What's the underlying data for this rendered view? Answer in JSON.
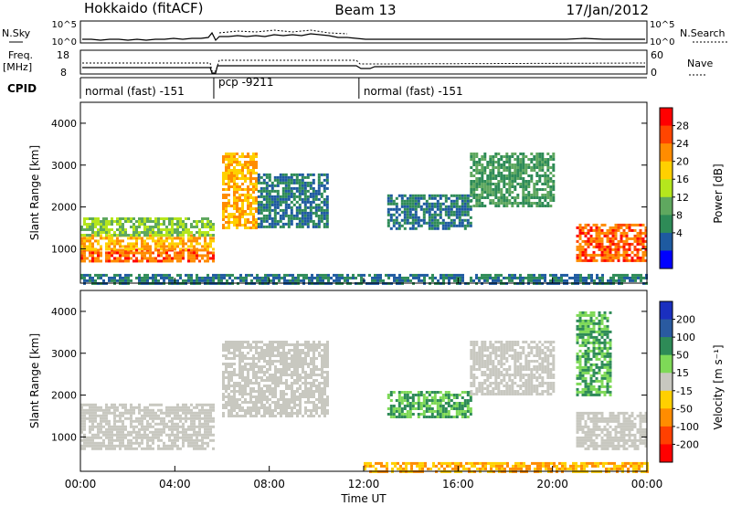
{
  "header": {
    "station": "Hokkaido (fitACF)",
    "beam": "Beam 13",
    "date": "17/Jan/2012"
  },
  "top_panel": {
    "left_label": "N.Sky",
    "left_ticks": [
      "10^5",
      "10^0"
    ],
    "right_ticks": [
      "10^5",
      "10^0"
    ],
    "right_label": "N.Search"
  },
  "freq_panel": {
    "left_label_1": "Freq.",
    "left_label_2": "[MHz]",
    "left_ticks": [
      "18",
      "8"
    ],
    "right_ticks": [
      "60",
      "0"
    ],
    "right_label": "Nave"
  },
  "cpid": {
    "label": "CPID",
    "segments": [
      {
        "start_h": 0,
        "end_h": 5.65,
        "text": "normal (fast) -151"
      },
      {
        "start_h": 5.65,
        "end_h": 11.8,
        "text": "pcp -9211"
      },
      {
        "start_h": 11.8,
        "end_h": 24,
        "text": "normal (fast) -151"
      }
    ]
  },
  "colorbars": {
    "power": {
      "label": "Power [dB]",
      "ticks": [
        "28",
        "24",
        "20",
        "16",
        "12",
        "8",
        "4"
      ],
      "colors": [
        "#ff0000",
        "#ff4500",
        "#ff8c00",
        "#ffd000",
        "#b5e61d",
        "#5fa85f",
        "#2e8b57",
        "#1e5aa0",
        "#0000ff"
      ]
    },
    "velocity": {
      "label": "Velocity [m s⁻¹]",
      "ticks": [
        "200",
        "100",
        "50",
        "15",
        "-15",
        "-50",
        "-100",
        "-200"
      ],
      "colors": [
        "#1a2fbf",
        "#2a5aa0",
        "#2e8b57",
        "#7ed957",
        "#c8c8c0",
        "#ffd000",
        "#ff8c00",
        "#ff4000",
        "#ff0000"
      ]
    }
  },
  "chart_data": {
    "type": "heatmap",
    "title": "Hokkaido (fitACF)  Beam 13  17/Jan/2012",
    "xlabel": "Time UT",
    "ylabel": "Slant Range [km]",
    "x_ticks": [
      "00:00",
      "04:00",
      "08:00",
      "12:00",
      "16:00",
      "20:00",
      "00:00"
    ],
    "xlim_hours": [
      0,
      24
    ],
    "y_ticks": [
      "1000",
      "2000",
      "3000",
      "4000"
    ],
    "ylim_km": [
      180,
      4500
    ],
    "power_regions": [
      {
        "t0": 0.0,
        "t1": 5.6,
        "r0": 700,
        "r1": 1000,
        "value_db": 28
      },
      {
        "t0": 0.0,
        "t1": 5.6,
        "r0": 1000,
        "r1": 1350,
        "value_db": 24
      },
      {
        "t0": 0.0,
        "t1": 5.6,
        "r0": 1350,
        "r1": 1750,
        "value_db": 16
      },
      {
        "t0": 6.0,
        "t1": 7.5,
        "r0": 1500,
        "r1": 3300,
        "value_db": 24
      },
      {
        "t0": 7.5,
        "t1": 10.5,
        "r0": 1500,
        "r1": 2800,
        "value_db": 8
      },
      {
        "t0": 13.0,
        "t1": 16.5,
        "r0": 1500,
        "r1": 2300,
        "value_db": 8
      },
      {
        "t0": 16.5,
        "t1": 20.0,
        "r0": 2000,
        "r1": 3300,
        "value_db": 12
      },
      {
        "t0": 21.0,
        "t1": 24.0,
        "r0": 700,
        "r1": 1600,
        "value_db": 28
      },
      {
        "t0": 0.0,
        "t1": 24.0,
        "r0": 180,
        "r1": 400,
        "value_db": 8
      }
    ],
    "velocity_regions": [
      {
        "t0": 0.0,
        "t1": 5.6,
        "r0": 700,
        "r1": 1800,
        "value_ms": 0
      },
      {
        "t0": 6.0,
        "t1": 10.5,
        "r0": 1500,
        "r1": 3300,
        "value_ms": 0
      },
      {
        "t0": 13.0,
        "t1": 16.5,
        "r0": 1500,
        "r1": 2100,
        "value_ms": 50
      },
      {
        "t0": 16.5,
        "t1": 20.0,
        "r0": 2000,
        "r1": 3300,
        "value_ms": 0
      },
      {
        "t0": 21.0,
        "t1": 22.5,
        "r0": 2000,
        "r1": 4000,
        "value_ms": 50
      },
      {
        "t0": 21.0,
        "t1": 24.0,
        "r0": 700,
        "r1": 1600,
        "value_ms": 0
      },
      {
        "t0": 12.0,
        "t1": 24.0,
        "r0": 180,
        "r1": 400,
        "value_ms": -50
      }
    ]
  }
}
